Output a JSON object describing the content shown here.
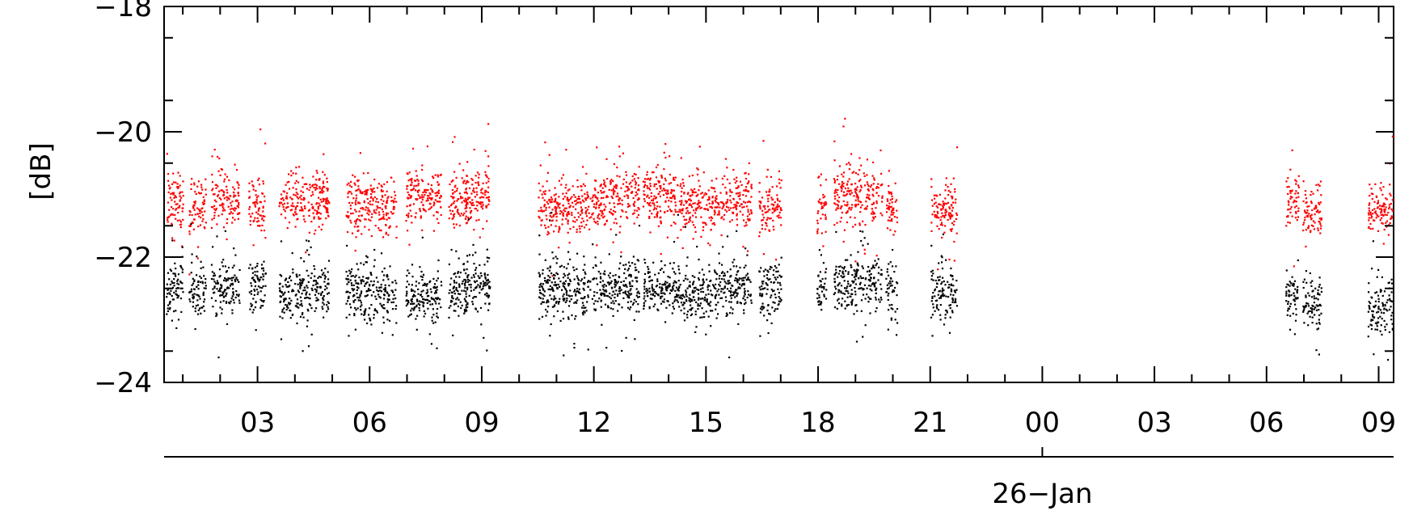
{
  "chart_data": {
    "type": "scatter",
    "xlabel": "",
    "ylabel": "[dB]",
    "ylim": [
      -24,
      -18
    ],
    "y_ticks": [
      "−18",
      "−20",
      "−22",
      "−24"
    ],
    "y_tick_values": [
      -18,
      -20,
      -22,
      -24
    ],
    "xlim_hours": [
      0.5,
      33.4
    ],
    "x_ticks": [
      "03",
      "06",
      "09",
      "12",
      "15",
      "18",
      "21",
      "00",
      "03",
      "06",
      "09"
    ],
    "x_tick_hours": [
      3,
      6,
      9,
      12,
      15,
      18,
      21,
      24,
      27,
      30,
      33
    ],
    "date_label": "26−Jan",
    "date_label_hour": 24,
    "grid": false,
    "series": [
      {
        "color": "#ff0000",
        "segments": [
          [
            0.5,
            1.0,
            -21.1
          ],
          [
            1.15,
            1.6,
            -21.2
          ],
          [
            1.75,
            2.5,
            -21.05
          ],
          [
            2.75,
            3.2,
            -21.15
          ],
          [
            3.55,
            4.9,
            -21.1
          ],
          [
            5.35,
            6.7,
            -21.15
          ],
          [
            6.95,
            7.9,
            -21.0
          ],
          [
            8.1,
            8.6,
            -21.05
          ],
          [
            8.5,
            9.2,
            -21.0
          ],
          [
            10.5,
            12.0,
            -21.2
          ],
          [
            12.0,
            13.2,
            -21.05
          ],
          [
            13.3,
            14.3,
            -21.0
          ],
          [
            14.3,
            15.4,
            -21.15
          ],
          [
            15.4,
            16.2,
            -21.05
          ],
          [
            16.4,
            17.0,
            -21.2
          ],
          [
            17.95,
            18.2,
            -21.2
          ],
          [
            18.4,
            19.7,
            -21.0
          ],
          [
            19.8,
            20.1,
            -21.2
          ],
          [
            21.0,
            21.7,
            -21.2
          ],
          [
            30.5,
            30.85,
            -21.1
          ],
          [
            30.95,
            31.45,
            -21.2
          ],
          [
            32.7,
            33.4,
            -21.2
          ]
        ]
      },
      {
        "color": "#000000",
        "segments": [
          [
            0.5,
            1.0,
            -22.45
          ],
          [
            1.15,
            1.6,
            -22.5
          ],
          [
            1.75,
            2.5,
            -22.5
          ],
          [
            2.75,
            3.2,
            -22.45
          ],
          [
            3.55,
            4.9,
            -22.55
          ],
          [
            5.35,
            6.7,
            -22.55
          ],
          [
            6.95,
            7.9,
            -22.6
          ],
          [
            8.1,
            8.6,
            -22.5
          ],
          [
            8.5,
            9.2,
            -22.45
          ],
          [
            10.5,
            12.0,
            -22.5
          ],
          [
            12.0,
            13.2,
            -22.45
          ],
          [
            13.3,
            14.3,
            -22.45
          ],
          [
            14.3,
            15.4,
            -22.55
          ],
          [
            15.4,
            16.2,
            -22.5
          ],
          [
            16.4,
            17.0,
            -22.5
          ],
          [
            17.95,
            18.2,
            -22.5
          ],
          [
            18.4,
            19.7,
            -22.4
          ],
          [
            19.8,
            20.1,
            -22.55
          ],
          [
            21.0,
            21.7,
            -22.55
          ],
          [
            30.5,
            30.85,
            -22.6
          ],
          [
            30.95,
            31.45,
            -22.7
          ],
          [
            32.7,
            33.4,
            -22.8
          ]
        ]
      }
    ]
  }
}
